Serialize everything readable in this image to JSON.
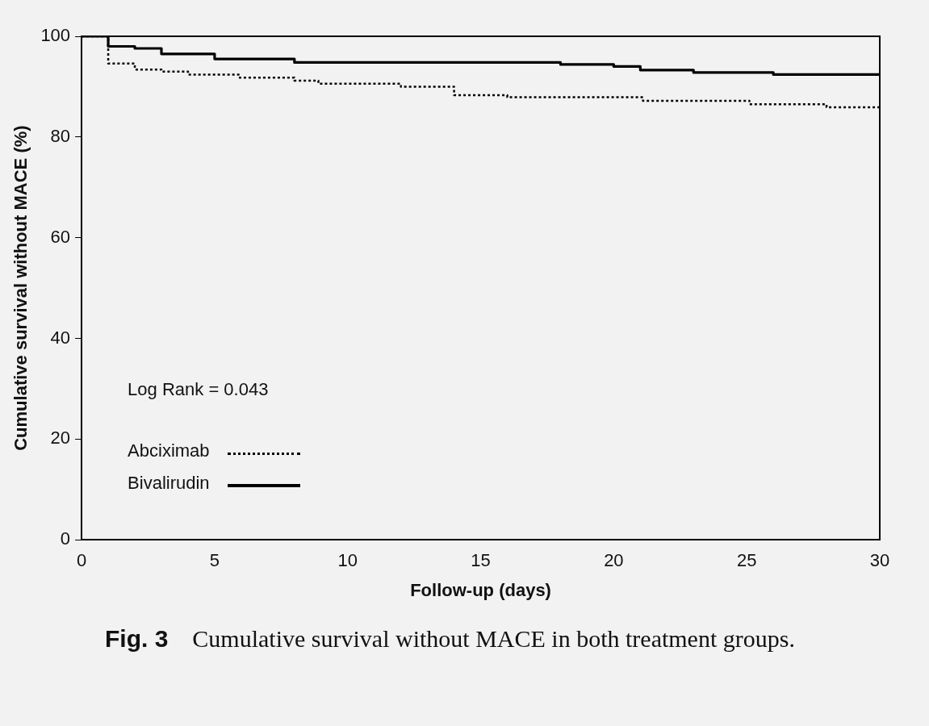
{
  "chart_data": {
    "type": "step",
    "xlabel": "Follow-up (days)",
    "ylabel": "Cumulative survival without MACE (%)",
    "xlim": [
      0,
      30
    ],
    "xticks": [
      0,
      5,
      10,
      15,
      20,
      25,
      30
    ],
    "ylim": [
      0,
      100
    ],
    "yticks": [
      0,
      20,
      40,
      60,
      80,
      100
    ],
    "grid": false,
    "legend": "bottom left",
    "marker": "none",
    "annotations": [
      {
        "text": "Log Rank = 0.043"
      },
      {
        "text": "Fig. 3 Cumulative survival without MACE in both treatment groups."
      }
    ],
    "series": [
      {
        "name": "Abciximab",
        "color": "#000000",
        "line_style": "dotted",
        "x": [
          0,
          1,
          2,
          3,
          4,
          5.9,
          8,
          8.9,
          12,
          14,
          16,
          21.1,
          25.1,
          28,
          30
        ],
        "values": [
          100,
          94.6,
          93.4,
          93,
          92.4,
          91.8,
          91.2,
          90.6,
          90,
          88.3,
          87.9,
          87.2,
          86.5,
          85.9,
          85.9
        ]
      },
      {
        "name": "Bivalirudin",
        "color": "#000000",
        "line_style": "solid",
        "x": [
          0,
          1,
          2,
          3,
          5,
          8,
          18,
          20,
          21,
          23,
          26,
          30
        ],
        "values": [
          100,
          98,
          97.6,
          96.5,
          95.5,
          94.8,
          94.4,
          94,
          93.3,
          92.8,
          92.4,
          92.4
        ]
      }
    ]
  }
}
